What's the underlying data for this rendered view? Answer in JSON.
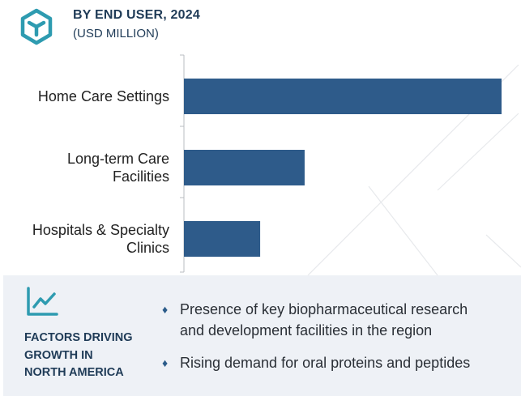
{
  "header": {
    "title": "BY END USER, 2024",
    "subtitle": "(USD MILLION)"
  },
  "colors": {
    "bar": "#2e5b8a",
    "accent": "#2e9bb0",
    "heading": "#1f3b57",
    "panel": "#eef1f6"
  },
  "chart_data": {
    "type": "bar",
    "orientation": "horizontal",
    "categories": [
      [
        "Home Care Settings"
      ],
      [
        "Long-term Care",
        "Facilities"
      ],
      [
        "Hospitals & Specialty",
        "Clinics"
      ]
    ],
    "values": [
      100,
      38,
      24
    ],
    "value_unit_note": "",
    "xlim": [
      0,
      100
    ],
    "grid": false,
    "legend": "none"
  },
  "factors": {
    "icon": "trend-line-icon",
    "heading_lines": [
      "FACTORS DRIVING",
      "GROWTH IN",
      "NORTH AMERICA"
    ],
    "bullets": [
      [
        "Presence of key biopharmaceutical research",
        "and development facilities in the region"
      ],
      [
        "Rising demand for oral proteins and peptides"
      ]
    ]
  }
}
